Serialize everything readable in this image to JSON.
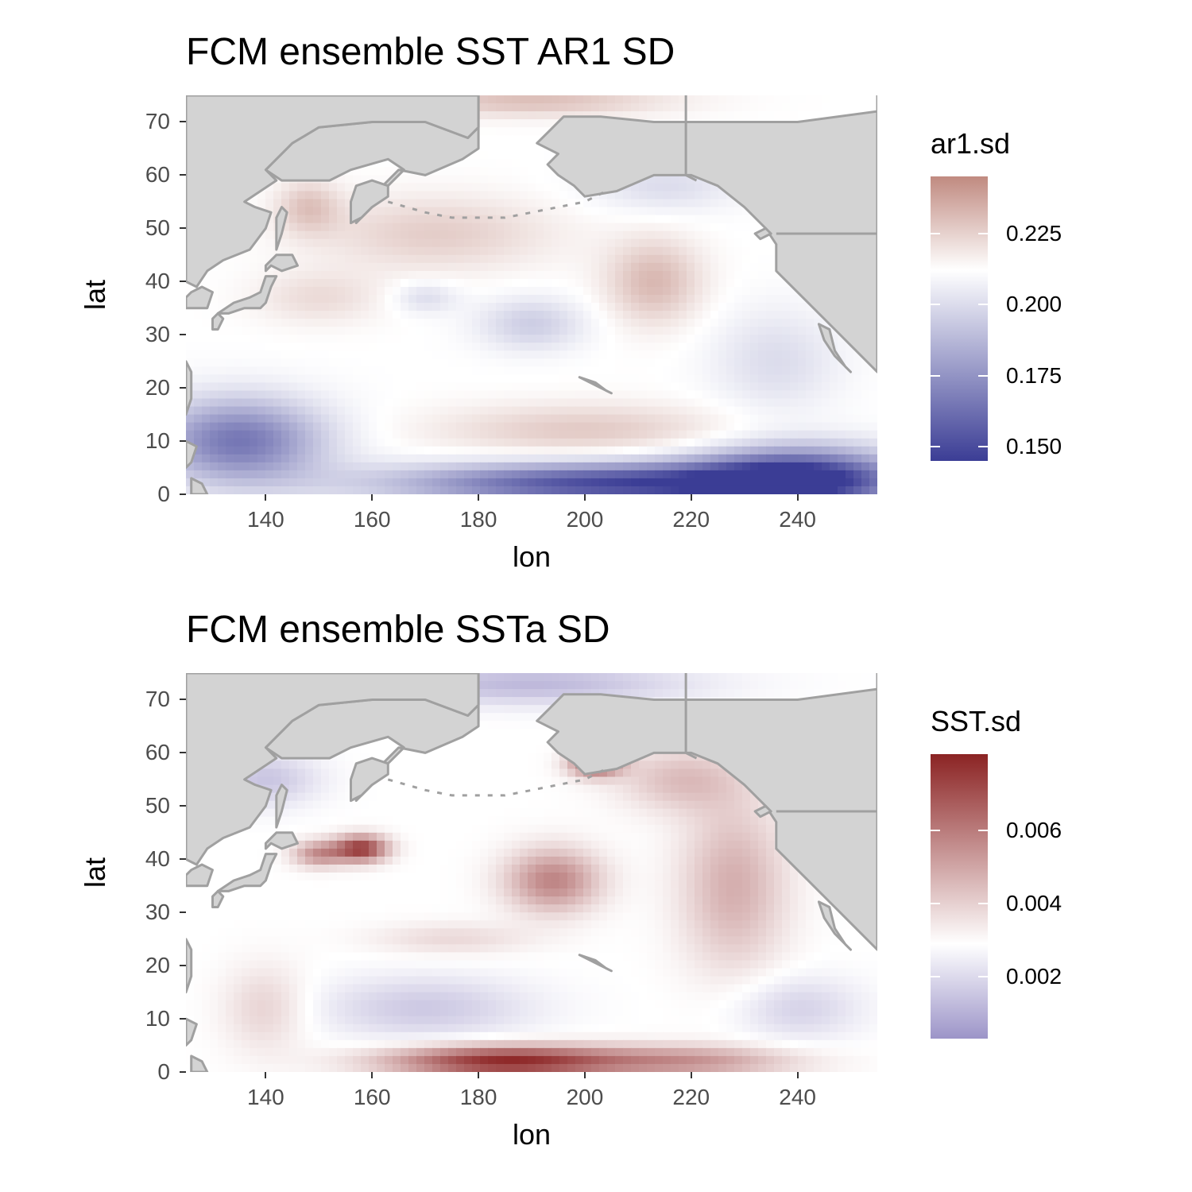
{
  "chart_data": [
    {
      "type": "heatmap",
      "title": "FCM ensemble SST AR1 SD",
      "xlabel": "lon",
      "ylabel": "lat",
      "xlim": [
        125,
        255
      ],
      "ylim": [
        0,
        75
      ],
      "x_ticks": [
        "140",
        "160",
        "180",
        "200",
        "220",
        "240"
      ],
      "y_ticks": [
        "0",
        "10",
        "20",
        "30",
        "40",
        "50",
        "60",
        "70"
      ],
      "legend": {
        "title": "ar1.sd",
        "min": 0.145,
        "max": 0.245,
        "midpoint": 0.212,
        "ticks": [
          {
            "value": 0.15,
            "label": "0.150"
          },
          {
            "value": 0.175,
            "label": "0.175"
          },
          {
            "value": 0.2,
            "label": "0.200"
          },
          {
            "value": 0.225,
            "label": "0.225"
          }
        ],
        "low_color": "#3b3d95",
        "mid_color": "#ffffff",
        "high_color": "#c08a80"
      },
      "land_color": "#d3d3d3",
      "coast_color": "#a0a0a0",
      "field_features": [
        {
          "lon": 205,
          "lat": 2,
          "value": 0.15,
          "slon": 40,
          "slat": 4
        },
        {
          "lon": 240,
          "lat": 3,
          "value": 0.15,
          "slon": 20,
          "slat": 6
        },
        {
          "lon": 135,
          "lat": 10,
          "value": 0.165,
          "slon": 16,
          "slat": 8
        },
        {
          "lon": 200,
          "lat": 12,
          "value": 0.227,
          "slon": 28,
          "slat": 5
        },
        {
          "lon": 213,
          "lat": 40,
          "value": 0.232,
          "slon": 9,
          "slat": 8
        },
        {
          "lon": 172,
          "lat": 49,
          "value": 0.226,
          "slon": 22,
          "slat": 7
        },
        {
          "lon": 190,
          "lat": 32,
          "value": 0.195,
          "slon": 10,
          "slat": 5
        },
        {
          "lon": 170,
          "lat": 37,
          "value": 0.2,
          "slon": 6,
          "slat": 3
        },
        {
          "lon": 148,
          "lat": 54,
          "value": 0.228,
          "slon": 6,
          "slat": 5
        },
        {
          "lon": 150,
          "lat": 37,
          "value": 0.222,
          "slon": 12,
          "slat": 5
        },
        {
          "lon": 236,
          "lat": 25,
          "value": 0.2,
          "slon": 12,
          "slat": 10
        },
        {
          "lon": 215,
          "lat": 58,
          "value": 0.2,
          "slon": 14,
          "slat": 5
        },
        {
          "lon": 190,
          "lat": 74,
          "value": 0.23,
          "slon": 25,
          "slat": 3
        }
      ]
    },
    {
      "type": "heatmap",
      "title": "FCM ensemble SSTa SD",
      "xlabel": "lon",
      "ylabel": "lat",
      "xlim": [
        125,
        255
      ],
      "ylim": [
        0,
        75
      ],
      "x_ticks": [
        "140",
        "160",
        "180",
        "200",
        "220",
        "240"
      ],
      "y_ticks": [
        "0",
        "10",
        "20",
        "30",
        "40",
        "50",
        "60",
        "70"
      ],
      "legend": {
        "title": "SST.sd",
        "min": 0.0003,
        "max": 0.0081,
        "midpoint": 0.0029,
        "ticks": [
          {
            "value": 0.002,
            "label": "0.002"
          },
          {
            "value": 0.004,
            "label": "0.004"
          },
          {
            "value": 0.006,
            "label": "0.006"
          }
        ],
        "low_color": "#9c94c8",
        "mid_color": "#ffffff",
        "high_color": "#8b2323"
      },
      "land_color": "#d3d3d3",
      "coast_color": "#a0a0a0",
      "field_features": [
        {
          "lon": 185,
          "lat": 2,
          "value": 0.0079,
          "slon": 22,
          "slat": 3
        },
        {
          "lon": 220,
          "lat": 2,
          "value": 0.0052,
          "slon": 20,
          "slat": 3
        },
        {
          "lon": 158,
          "lat": 42,
          "value": 0.0075,
          "slon": 5,
          "slat": 2.5
        },
        {
          "lon": 150,
          "lat": 41,
          "value": 0.0055,
          "slon": 5,
          "slat": 2.5
        },
        {
          "lon": 194,
          "lat": 36,
          "value": 0.0058,
          "slon": 9,
          "slat": 6
        },
        {
          "lon": 228,
          "lat": 35,
          "value": 0.0048,
          "slon": 10,
          "slat": 16
        },
        {
          "lon": 218,
          "lat": 55,
          "value": 0.0044,
          "slon": 12,
          "slat": 6
        },
        {
          "lon": 202,
          "lat": 58,
          "value": 0.0068,
          "slon": 5,
          "slat": 2.5
        },
        {
          "lon": 175,
          "lat": 25,
          "value": 0.0038,
          "slon": 15,
          "slat": 3
        },
        {
          "lon": 140,
          "lat": 12,
          "value": 0.004,
          "slon": 8,
          "slat": 8
        },
        {
          "lon": 170,
          "lat": 12,
          "value": 0.0016,
          "slon": 20,
          "slat": 6
        },
        {
          "lon": 140,
          "lat": 55,
          "value": 0.0015,
          "slon": 10,
          "slat": 5
        },
        {
          "lon": 190,
          "lat": 73,
          "value": 0.0012,
          "slon": 30,
          "slat": 4
        },
        {
          "lon": 240,
          "lat": 12,
          "value": 0.0018,
          "slon": 12,
          "slat": 6
        }
      ]
    }
  ]
}
